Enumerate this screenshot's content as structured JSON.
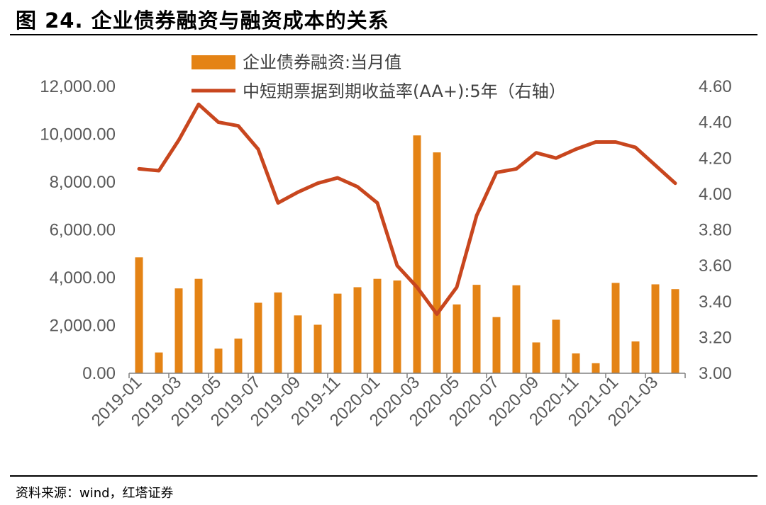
{
  "header": {
    "title": "图 24. 企业债券融资与融资成本的关系"
  },
  "footer": {
    "source": "资料来源：wind，红塔证券"
  },
  "colors": {
    "bar": "#E48315",
    "line": "#C8461E",
    "axis": "#808080",
    "text": "#595959"
  },
  "chart_data": {
    "type": "bar+line",
    "title": "",
    "legend": {
      "placement": "top",
      "items": [
        {
          "name": "企业债券融资:当月值",
          "kind": "bar"
        },
        {
          "name": "中短期票据到期收益率(AA+):5年（右轴）",
          "kind": "line"
        }
      ]
    },
    "categories": [
      "2019-01",
      "2019-02",
      "2019-03",
      "2019-04",
      "2019-05",
      "2019-06",
      "2019-07",
      "2019-08",
      "2019-09",
      "2019-10",
      "2019-11",
      "2019-12",
      "2020-01",
      "2020-02",
      "2020-03",
      "2020-04",
      "2020-05",
      "2020-06",
      "2020-07",
      "2020-08",
      "2020-09",
      "2020-10",
      "2020-11",
      "2020-12",
      "2021-01",
      "2021-02",
      "2021-03",
      "2021-04"
    ],
    "x_tick_labels": [
      "2019-01",
      "2019-03",
      "2019-05",
      "2019-07",
      "2019-09",
      "2019-11",
      "2020-01",
      "2020-03",
      "2020-05",
      "2020-07",
      "2020-09",
      "2020-11",
      "2021-01",
      "2021-03"
    ],
    "series": [
      {
        "name": "企业债券融资:当月值",
        "axis": "left",
        "values": [
          4850,
          870,
          3550,
          3950,
          1030,
          1450,
          2950,
          3380,
          2420,
          2030,
          3330,
          3600,
          3950,
          3880,
          9950,
          9240,
          2880,
          3700,
          2350,
          3680,
          1290,
          2240,
          830,
          420,
          3780,
          1330,
          3720,
          3520
        ]
      },
      {
        "name": "中短期票据到期收益率(AA+):5年（右轴）",
        "axis": "right",
        "values": [
          4.14,
          4.13,
          4.3,
          4.5,
          4.4,
          4.38,
          4.25,
          3.95,
          4.01,
          4.06,
          4.09,
          4.04,
          3.95,
          3.6,
          3.48,
          3.33,
          3.48,
          3.88,
          4.12,
          4.14,
          4.23,
          4.2,
          4.25,
          4.29,
          4.29,
          4.26,
          4.16,
          4.06
        ]
      }
    ],
    "y_left": {
      "min": 0,
      "max": 12000,
      "step": 2000,
      "tick_labels": [
        "0.00",
        "2,000.00",
        "4,000.00",
        "6,000.00",
        "8,000.00",
        "10,000.00",
        "12,000.00"
      ]
    },
    "y_right": {
      "min": 3.0,
      "max": 4.6,
      "step": 0.2,
      "tick_labels": [
        "3.00",
        "3.20",
        "3.40",
        "3.60",
        "3.80",
        "4.00",
        "4.20",
        "4.40",
        "4.60"
      ]
    },
    "grid": false
  }
}
